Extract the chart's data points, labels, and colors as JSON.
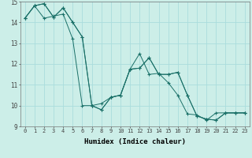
{
  "title": "",
  "xlabel": "Humidex (Indice chaleur)",
  "background_color": "#cceee8",
  "grid_color": "#aadddd",
  "line_color": "#1a7068",
  "xlim": [
    -0.5,
    23.5
  ],
  "ylim": [
    9,
    15
  ],
  "xticks": [
    0,
    1,
    2,
    3,
    4,
    5,
    6,
    7,
    8,
    9,
    10,
    11,
    12,
    13,
    14,
    15,
    16,
    17,
    18,
    19,
    20,
    21,
    22,
    23
  ],
  "yticks": [
    9,
    10,
    11,
    12,
    13,
    14,
    15
  ],
  "series": [
    [
      14.2,
      14.8,
      14.2,
      14.3,
      14.4,
      13.2,
      10.0,
      10.0,
      10.1,
      10.4,
      10.5,
      11.75,
      12.5,
      11.5,
      11.55,
      11.1,
      10.5,
      9.6,
      9.55,
      9.3,
      9.65,
      9.65,
      9.65,
      9.65
    ],
    [
      14.2,
      14.8,
      14.9,
      14.25,
      14.7,
      14.0,
      13.3,
      10.0,
      9.8,
      10.4,
      10.5,
      11.75,
      11.8,
      12.3,
      11.5,
      11.5,
      11.6,
      10.5,
      9.5,
      9.35,
      9.3,
      9.65,
      9.65,
      9.65
    ],
    [
      14.2,
      14.8,
      14.9,
      14.25,
      14.7,
      14.0,
      13.3,
      10.0,
      9.8,
      10.4,
      10.5,
      11.75,
      11.8,
      12.3,
      11.5,
      11.5,
      11.6,
      10.5,
      9.5,
      9.35,
      9.3,
      9.65,
      9.65,
      9.65
    ]
  ],
  "xlabel_fontsize": 6.5,
  "tick_fontsize": 5.0
}
